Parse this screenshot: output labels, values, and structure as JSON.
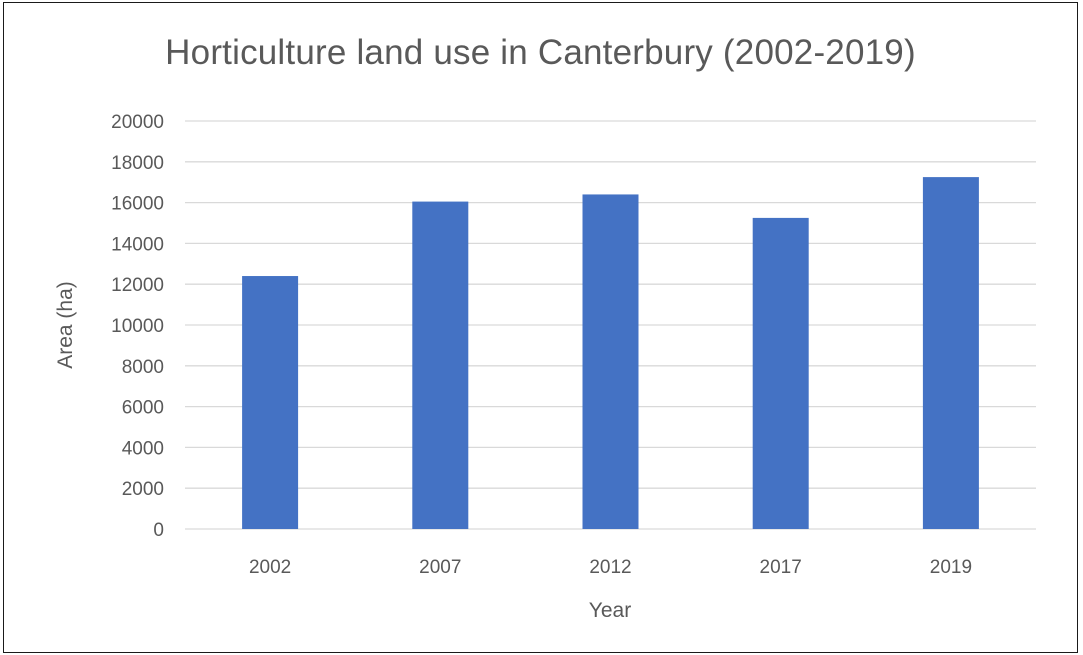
{
  "chart_data": {
    "type": "bar",
    "title": "Horticulture land use in Canterbury (2002-2019)",
    "xlabel": "Year",
    "ylabel": "Area (ha)",
    "categories": [
      "2002",
      "2007",
      "2012",
      "2017",
      "2019"
    ],
    "values": [
      12400,
      16050,
      16400,
      15250,
      17250
    ],
    "ylim": [
      0,
      20000
    ],
    "yticks": [
      0,
      2000,
      4000,
      6000,
      8000,
      10000,
      12000,
      14000,
      16000,
      18000,
      20000
    ],
    "grid": true,
    "legend": "none",
    "colors": {
      "bar": "#4472C4",
      "grid": "#d9d9d9",
      "text": "#595959",
      "frame": "#1a1a1a"
    }
  }
}
